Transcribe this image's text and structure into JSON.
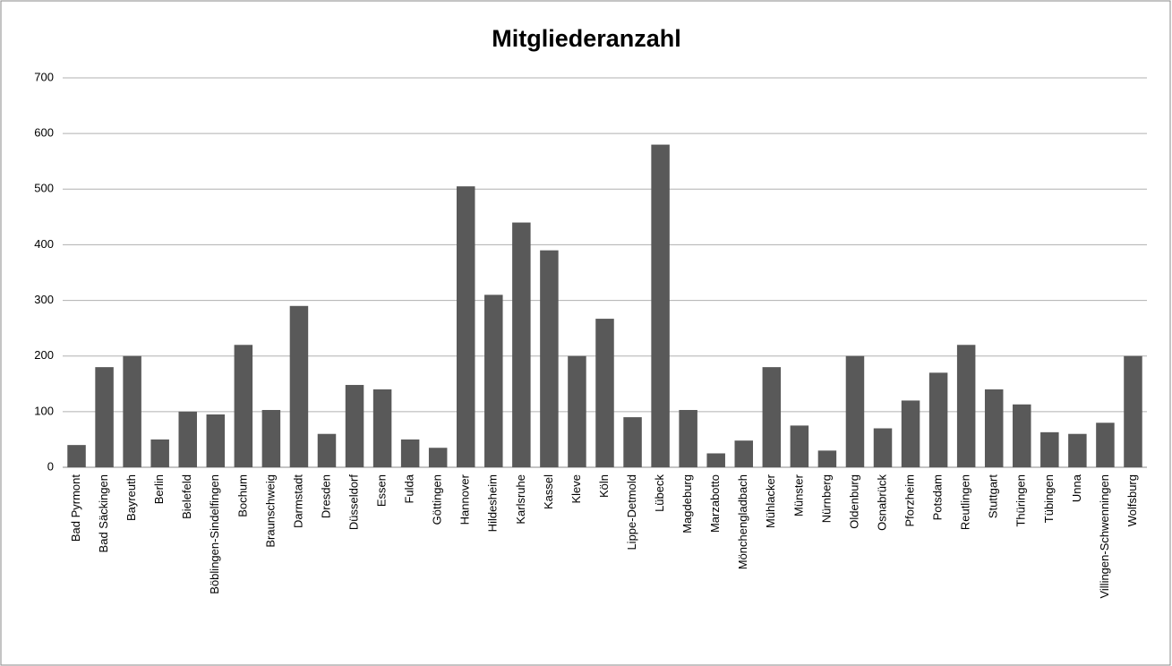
{
  "chart_data": {
    "type": "bar",
    "title": "Mitgliederanzahl",
    "categories": [
      "Bad Pyrmont",
      "Bad Säckingen",
      "Bayreuth",
      "Berlin",
      "Bielefeld",
      "Böblingen-Sindelfingen",
      "Bochum",
      "Braunschweig",
      "Darmstadt",
      "Dresden",
      "Düsseldorf",
      "Essen",
      "Fulda",
      "Göttingen",
      "Hannover",
      "Hildesheim",
      "Karlsruhe",
      "Kassel",
      "Kleve",
      "Köln",
      "Lippe-Detmold",
      "Lübeck",
      "Magdeburg",
      "Marzabotto",
      "Mönchengladbach",
      "Mühlacker",
      "Münster",
      "Nürnberg",
      "Oldenburg",
      "Osnabrück",
      "Pforzheim",
      "Potsdam",
      "Reutlingen",
      "Stuttgart",
      "Thüringen",
      "Tübingen",
      "Unna",
      "Villingen-Schwenningen",
      "Wolfsburg"
    ],
    "values": [
      40,
      180,
      200,
      50,
      100,
      95,
      220,
      103,
      290,
      60,
      148,
      140,
      50,
      35,
      505,
      310,
      440,
      390,
      200,
      267,
      90,
      580,
      103,
      25,
      48,
      180,
      75,
      30,
      200,
      70,
      120,
      170,
      220,
      140,
      113,
      63,
      60,
      80,
      200
    ],
    "color": "#595959",
    "ylim": [
      0,
      700
    ],
    "yticks": [
      0,
      100,
      200,
      300,
      400,
      500,
      600,
      700
    ],
    "grid": true
  }
}
